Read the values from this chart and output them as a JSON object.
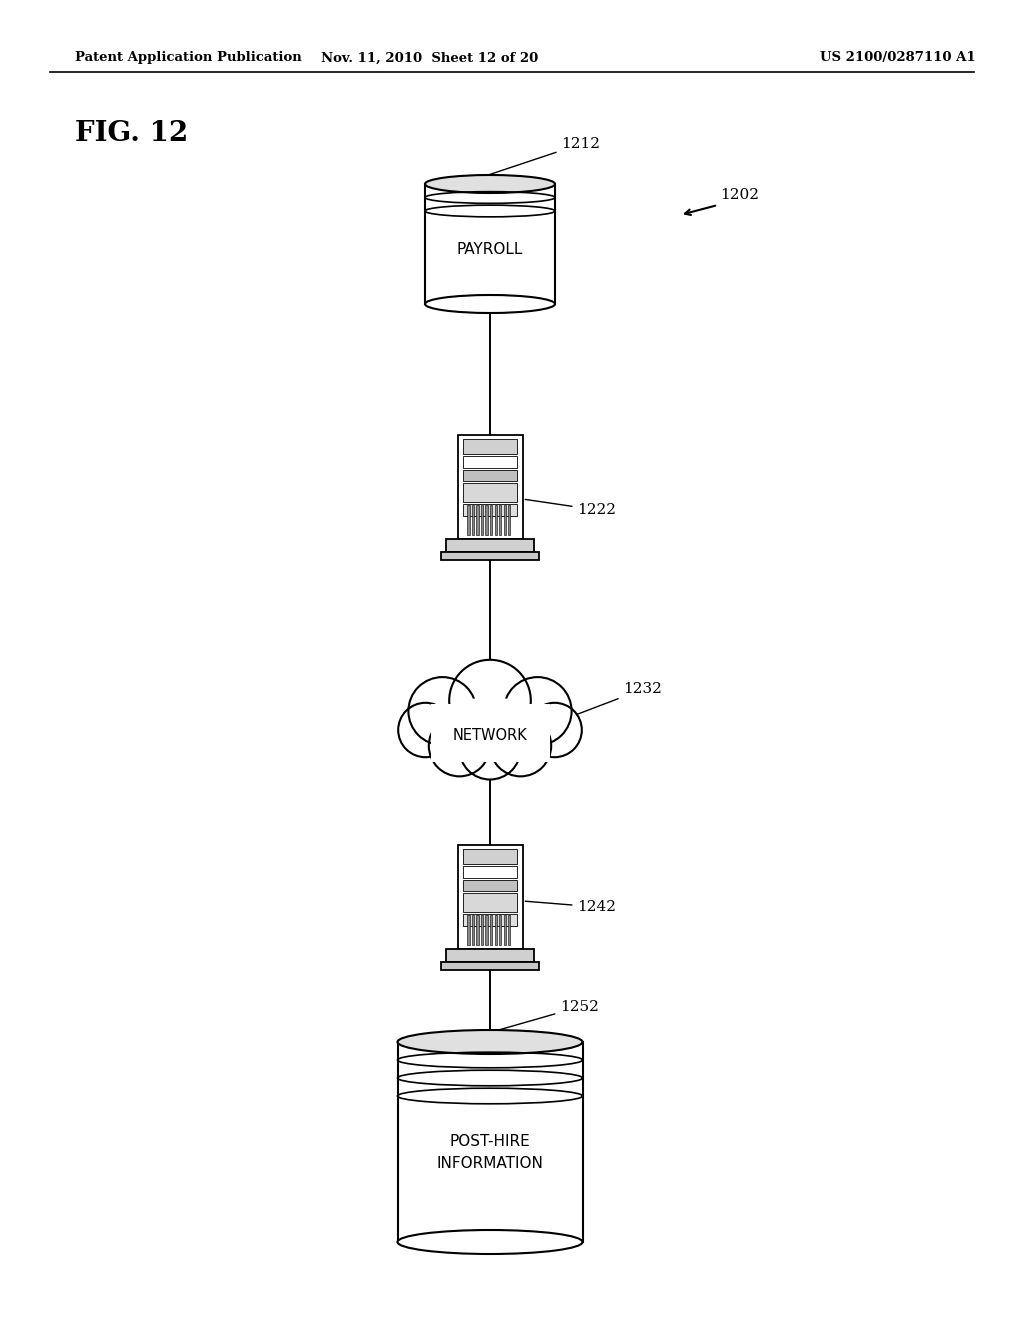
{
  "bg_color": "#ffffff",
  "header_left": "Patent Application Publication",
  "header_center": "Nov. 11, 2010  Sheet 12 of 20",
  "header_right": "US 2100/0287110 A1",
  "fig_label": "FIG. 12",
  "diagram_label": "1202",
  "payroll_label": "1212",
  "payroll_text": "PAYROLL",
  "server1_label": "1222",
  "network_label": "1232",
  "network_text": "NETWORK",
  "server2_label": "1242",
  "db2_label": "1252",
  "db2_line1": "POST-HIRE",
  "db2_line2": "INFORMATION"
}
